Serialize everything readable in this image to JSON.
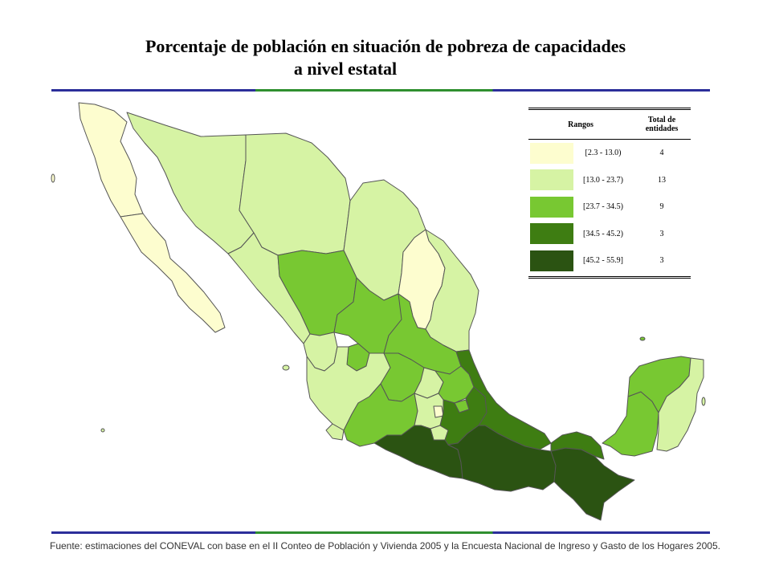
{
  "title": {
    "line1": "Porcentaje de población en situación de pobreza de capacidades",
    "line2": "a nivel estatal"
  },
  "legend": {
    "header_range": "Rangos",
    "header_total": "Total de entidades",
    "rows": [
      {
        "range": "[2.3 - 13.0)",
        "count": "4",
        "color": "#fdfdcf"
      },
      {
        "range": "[13.0 - 23.7)",
        "count": "13",
        "color": "#d6f3a4"
      },
      {
        "range": "[23.7 - 34.5)",
        "count": "9",
        "color": "#78c832"
      },
      {
        "range": "[34.5 - 45.2)",
        "count": "3",
        "color": "#3e7d12"
      },
      {
        "range": "[45.2 - 55.9]",
        "count": "3",
        "color": "#2b5312"
      }
    ]
  },
  "source": "Fuente: estimaciones del CONEVAL con base en el II Conteo de Población y Vivienda 2005 y la Encuesta Nacional de Ingreso y Gasto de los Hogares 2005.",
  "colors": {
    "rule_blue": "#2b2e9a",
    "rule_green": "#2f8f2f",
    "border": "#555555"
  }
}
